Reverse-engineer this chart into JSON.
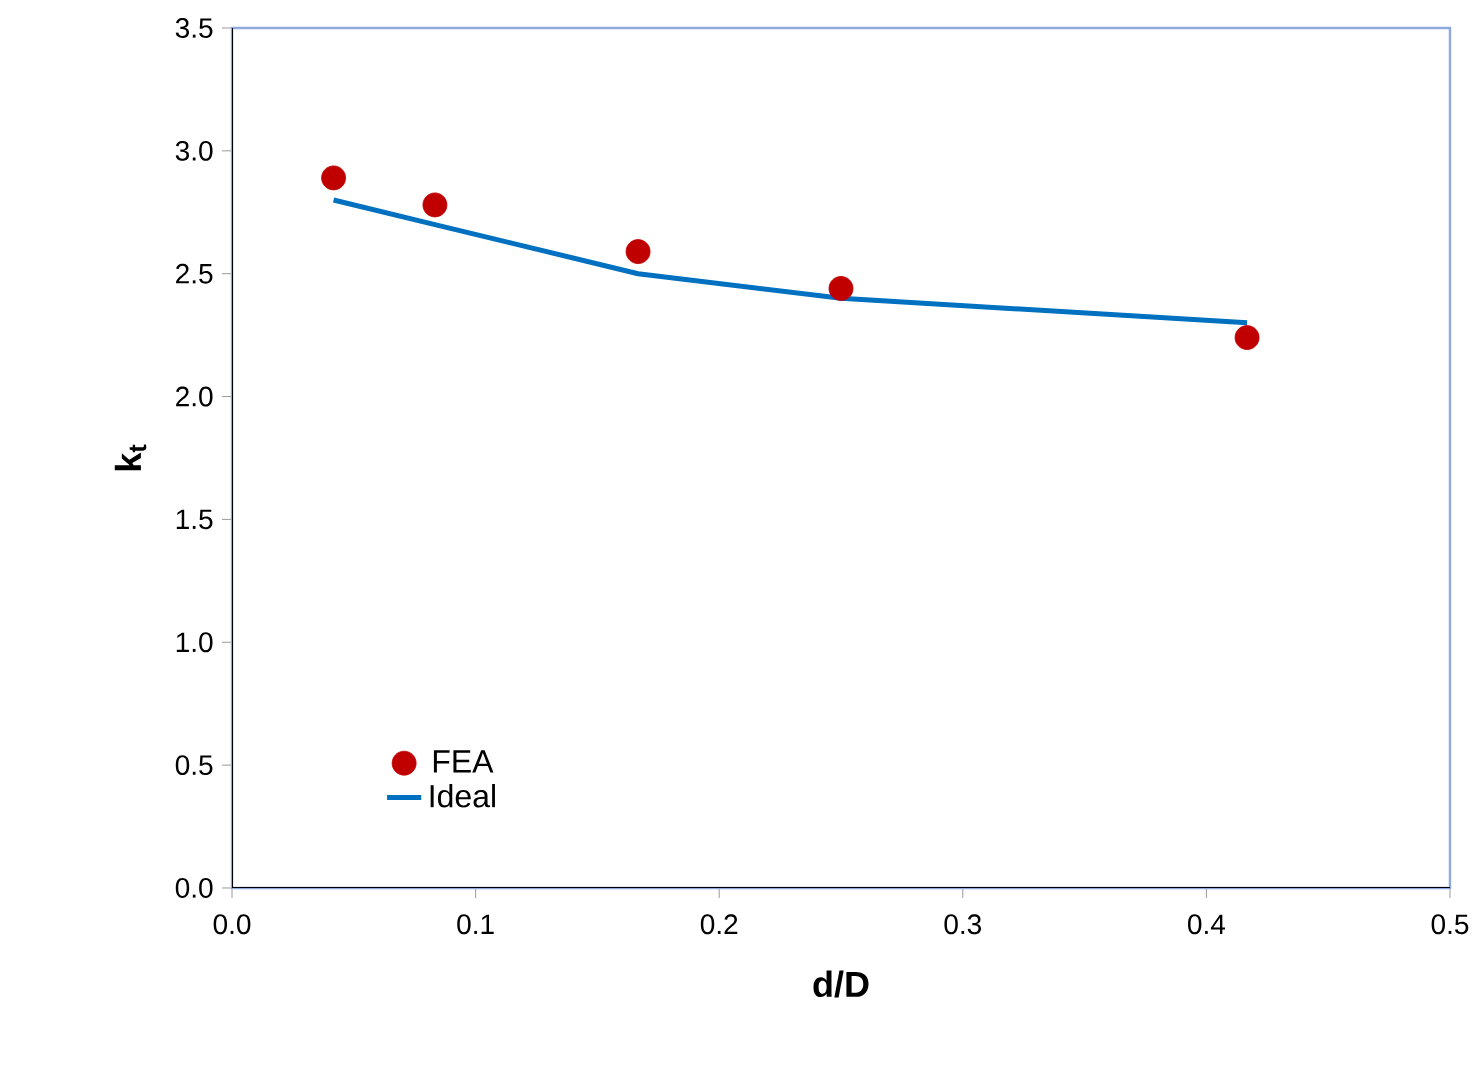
{
  "chart_data": {
    "type": "scatter",
    "xlabel": "d/D",
    "ylabel": "k$_{t}$",
    "series": [
      {
        "name": "FEA",
        "color": "#c00000",
        "marker": "circle",
        "x": [
          0.0417,
          0.0833,
          0.1667,
          0.25,
          0.4167
        ],
        "values": [
          2.89,
          2.78,
          2.59,
          2.44,
          2.24
        ]
      },
      {
        "name": "Ideal",
        "type": "line",
        "color": "#0070c0",
        "marker": "none",
        "line_style": "solid",
        "x": [
          0.0417,
          0.0833,
          0.1667,
          0.25,
          0.4167
        ],
        "values": [
          2.8,
          2.7,
          2.5,
          2.4,
          2.3
        ]
      }
    ],
    "xlim": [
      0,
      0.5
    ],
    "ylim": [
      0,
      3.5
    ],
    "xticks": [
      {
        "value": 0,
        "label": "0.0"
      },
      0.1,
      0.2,
      0.3,
      0.4,
      0.5
    ],
    "yticks": [
      {
        "value": 0,
        "label": "0.0"
      },
      0.5,
      {
        "value": 1,
        "label": "1.0"
      },
      1.5,
      {
        "value": 2,
        "label": "2.0"
      },
      2.5,
      {
        "value": 3,
        "label": "3.0"
      },
      3.5
    ],
    "grid": false,
    "legend": "bottom left"
  }
}
